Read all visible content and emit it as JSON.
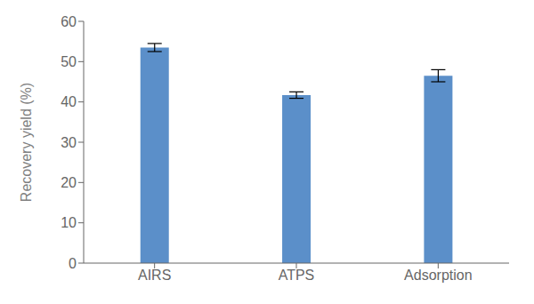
{
  "chart_data": {
    "type": "bar",
    "categories": [
      "AIRS",
      "ATPS",
      "Adsorption"
    ],
    "values": [
      53.5,
      41.7,
      46.5
    ],
    "errors": [
      1.0,
      0.8,
      1.5
    ],
    "color": "#5b8fc9",
    "ylim": [
      0,
      60
    ],
    "yticks": [
      0,
      10,
      20,
      30,
      40,
      50,
      60
    ],
    "ylabel": "Recovery yield (%)",
    "grid": false
  }
}
